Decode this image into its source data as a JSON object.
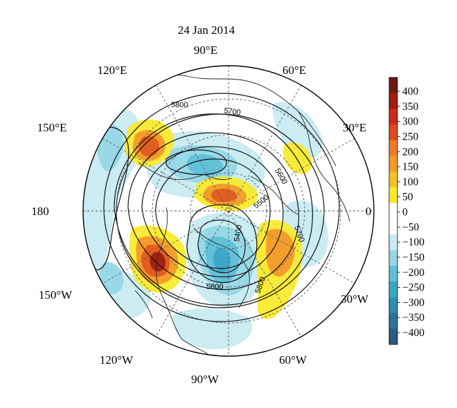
{
  "title": "24 Jan 2014",
  "map": {
    "projection": "north polar stereographic",
    "longitude_labels": [
      {
        "id": "lon-90e",
        "text": "90°E",
        "lon": 90
      },
      {
        "id": "lon-60e",
        "text": "60°E",
        "lon": 60
      },
      {
        "id": "lon-30e",
        "text": "30°E",
        "lon": 30
      },
      {
        "id": "lon-0",
        "text": "0",
        "lon": 0
      },
      {
        "id": "lon-30w",
        "text": "30°W",
        "lon": -30
      },
      {
        "id": "lon-60w",
        "text": "60°W",
        "lon": -60
      },
      {
        "id": "lon-90w",
        "text": "90°W",
        "lon": -90
      },
      {
        "id": "lon-120w",
        "text": "120°W",
        "lon": -120
      },
      {
        "id": "lon-150w",
        "text": "150°W",
        "lon": -150
      },
      {
        "id": "lon-180",
        "text": "180",
        "lon": 180
      },
      {
        "id": "lon-150e",
        "text": "150°E",
        "lon": 150
      },
      {
        "id": "lon-120e",
        "text": "120°E",
        "lon": 120
      }
    ],
    "contour_labels": [
      "5800",
      "5700",
      "5600",
      "5500",
      "5400",
      "5600",
      "5700",
      "5800"
    ],
    "colors": {
      "coastline": "#222222",
      "contour": "#111111",
      "graticule": "#555555"
    }
  },
  "colorbar": {
    "ticks": [
      "400",
      "350",
      "300",
      "250",
      "200",
      "150",
      "100",
      "50",
      "0",
      "−50",
      "−100",
      "−150",
      "−200",
      "−250",
      "−300",
      "−350",
      "−400"
    ],
    "colors": [
      "#6b1a12",
      "#a11d12",
      "#cc2a1a",
      "#df4a20",
      "#ec7a26",
      "#f29a2a",
      "#f6c12a",
      "#f9ea2e",
      "#ffffff",
      "#ffffff",
      "#c8ebf2",
      "#96d7e6",
      "#5fc0d8",
      "#3aa7c8",
      "#2d8db3",
      "#2b719c",
      "#2c5a84"
    ]
  }
}
